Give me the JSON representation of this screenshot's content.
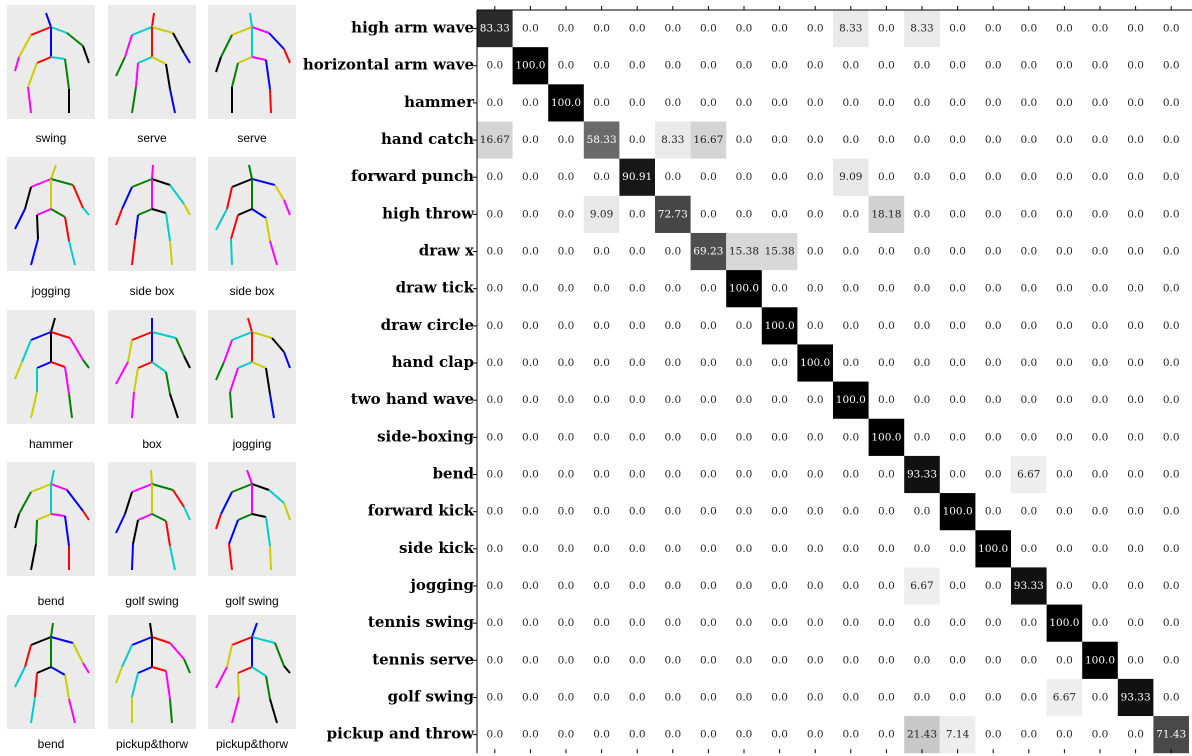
{
  "thumbnails": [
    {
      "caption": "swing"
    },
    {
      "caption": "serve"
    },
    {
      "caption": "serve"
    },
    {
      "caption": "jogging"
    },
    {
      "caption": "side box"
    },
    {
      "caption": "side box"
    },
    {
      "caption": "hammer"
    },
    {
      "caption": "box"
    },
    {
      "caption": "jogging"
    },
    {
      "caption": "bend"
    },
    {
      "caption": "golf swing"
    },
    {
      "caption": "golf swing"
    },
    {
      "caption": "bend"
    },
    {
      "caption": "pickup&thorw"
    },
    {
      "caption": "pickup&thorw"
    }
  ],
  "matrix": {
    "row_labels": [
      "high arm wave",
      "horizontal arm wave",
      "hammer",
      "hand catch",
      "forward punch",
      "high throw",
      "draw x",
      "draw tick",
      "draw circle",
      "hand clap",
      "two hand wave",
      "side-boxing",
      "bend",
      "forward kick",
      "side kick",
      "jogging",
      "tennis swing",
      "tennis serve",
      "golf swing",
      "pickup and throw"
    ],
    "rows": [
      [
        "83.33",
        "0.0",
        "0.0",
        "0.0",
        "0.0",
        "0.0",
        "0.0",
        "0.0",
        "0.0",
        "0.0",
        "8.33",
        "0.0",
        "8.33",
        "0.0",
        "0.0",
        "0.0",
        "0.0",
        "0.0",
        "0.0",
        "0.0"
      ],
      [
        "0.0",
        "100.0",
        "0.0",
        "0.0",
        "0.0",
        "0.0",
        "0.0",
        "0.0",
        "0.0",
        "0.0",
        "0.0",
        "0.0",
        "0.0",
        "0.0",
        "0.0",
        "0.0",
        "0.0",
        "0.0",
        "0.0",
        "0.0"
      ],
      [
        "0.0",
        "0.0",
        "100.0",
        "0.0",
        "0.0",
        "0.0",
        "0.0",
        "0.0",
        "0.0",
        "0.0",
        "0.0",
        "0.0",
        "0.0",
        "0.0",
        "0.0",
        "0.0",
        "0.0",
        "0.0",
        "0.0",
        "0.0"
      ],
      [
        "16.67",
        "0.0",
        "0.0",
        "58.33",
        "0.0",
        "8.33",
        "16.67",
        "0.0",
        "0.0",
        "0.0",
        "0.0",
        "0.0",
        "0.0",
        "0.0",
        "0.0",
        "0.0",
        "0.0",
        "0.0",
        "0.0",
        "0.0"
      ],
      [
        "0.0",
        "0.0",
        "0.0",
        "0.0",
        "90.91",
        "0.0",
        "0.0",
        "0.0",
        "0.0",
        "0.0",
        "9.09",
        "0.0",
        "0.0",
        "0.0",
        "0.0",
        "0.0",
        "0.0",
        "0.0",
        "0.0",
        "0.0"
      ],
      [
        "0.0",
        "0.0",
        "0.0",
        "9.09",
        "0.0",
        "72.73",
        "0.0",
        "0.0",
        "0.0",
        "0.0",
        "0.0",
        "18.18",
        "0.0",
        "0.0",
        "0.0",
        "0.0",
        "0.0",
        "0.0",
        "0.0",
        "0.0"
      ],
      [
        "0.0",
        "0.0",
        "0.0",
        "0.0",
        "0.0",
        "0.0",
        "69.23",
        "15.38",
        "15.38",
        "0.0",
        "0.0",
        "0.0",
        "0.0",
        "0.0",
        "0.0",
        "0.0",
        "0.0",
        "0.0",
        "0.0",
        "0.0"
      ],
      [
        "0.0",
        "0.0",
        "0.0",
        "0.0",
        "0.0",
        "0.0",
        "0.0",
        "100.0",
        "0.0",
        "0.0",
        "0.0",
        "0.0",
        "0.0",
        "0.0",
        "0.0",
        "0.0",
        "0.0",
        "0.0",
        "0.0",
        "0.0"
      ],
      [
        "0.0",
        "0.0",
        "0.0",
        "0.0",
        "0.0",
        "0.0",
        "0.0",
        "0.0",
        "100.0",
        "0.0",
        "0.0",
        "0.0",
        "0.0",
        "0.0",
        "0.0",
        "0.0",
        "0.0",
        "0.0",
        "0.0",
        "0.0"
      ],
      [
        "0.0",
        "0.0",
        "0.0",
        "0.0",
        "0.0",
        "0.0",
        "0.0",
        "0.0",
        "0.0",
        "100.0",
        "0.0",
        "0.0",
        "0.0",
        "0.0",
        "0.0",
        "0.0",
        "0.0",
        "0.0",
        "0.0",
        "0.0"
      ],
      [
        "0.0",
        "0.0",
        "0.0",
        "0.0",
        "0.0",
        "0.0",
        "0.0",
        "0.0",
        "0.0",
        "0.0",
        "100.0",
        "0.0",
        "0.0",
        "0.0",
        "0.0",
        "0.0",
        "0.0",
        "0.0",
        "0.0",
        "0.0"
      ],
      [
        "0.0",
        "0.0",
        "0.0",
        "0.0",
        "0.0",
        "0.0",
        "0.0",
        "0.0",
        "0.0",
        "0.0",
        "0.0",
        "100.0",
        "0.0",
        "0.0",
        "0.0",
        "0.0",
        "0.0",
        "0.0",
        "0.0",
        "0.0"
      ],
      [
        "0.0",
        "0.0",
        "0.0",
        "0.0",
        "0.0",
        "0.0",
        "0.0",
        "0.0",
        "0.0",
        "0.0",
        "0.0",
        "0.0",
        "93.33",
        "0.0",
        "0.0",
        "6.67",
        "0.0",
        "0.0",
        "0.0",
        "0.0"
      ],
      [
        "0.0",
        "0.0",
        "0.0",
        "0.0",
        "0.0",
        "0.0",
        "0.0",
        "0.0",
        "0.0",
        "0.0",
        "0.0",
        "0.0",
        "0.0",
        "100.0",
        "0.0",
        "0.0",
        "0.0",
        "0.0",
        "0.0",
        "0.0"
      ],
      [
        "0.0",
        "0.0",
        "0.0",
        "0.0",
        "0.0",
        "0.0",
        "0.0",
        "0.0",
        "0.0",
        "0.0",
        "0.0",
        "0.0",
        "0.0",
        "0.0",
        "100.0",
        "0.0",
        "0.0",
        "0.0",
        "0.0",
        "0.0"
      ],
      [
        "0.0",
        "0.0",
        "0.0",
        "0.0",
        "0.0",
        "0.0",
        "0.0",
        "0.0",
        "0.0",
        "0.0",
        "0.0",
        "0.0",
        "6.67",
        "0.0",
        "0.0",
        "93.33",
        "0.0",
        "0.0",
        "0.0",
        "0.0"
      ],
      [
        "0.0",
        "0.0",
        "0.0",
        "0.0",
        "0.0",
        "0.0",
        "0.0",
        "0.0",
        "0.0",
        "0.0",
        "0.0",
        "0.0",
        "0.0",
        "0.0",
        "0.0",
        "0.0",
        "100.0",
        "0.0",
        "0.0",
        "0.0"
      ],
      [
        "0.0",
        "0.0",
        "0.0",
        "0.0",
        "0.0",
        "0.0",
        "0.0",
        "0.0",
        "0.0",
        "0.0",
        "0.0",
        "0.0",
        "0.0",
        "0.0",
        "0.0",
        "0.0",
        "0.0",
        "100.0",
        "0.0",
        "0.0"
      ],
      [
        "0.0",
        "0.0",
        "0.0",
        "0.0",
        "0.0",
        "0.0",
        "0.0",
        "0.0",
        "0.0",
        "0.0",
        "0.0",
        "0.0",
        "0.0",
        "0.0",
        "0.0",
        "0.0",
        "6.67",
        "0.0",
        "93.33",
        "0.0"
      ],
      [
        "0.0",
        "0.0",
        "0.0",
        "0.0",
        "0.0",
        "0.0",
        "0.0",
        "0.0",
        "0.0",
        "0.0",
        "0.0",
        "0.0",
        "21.43",
        "7.14",
        "0.0",
        "0.0",
        "0.0",
        "0.0",
        "0.0",
        "71.43"
      ]
    ]
  }
}
